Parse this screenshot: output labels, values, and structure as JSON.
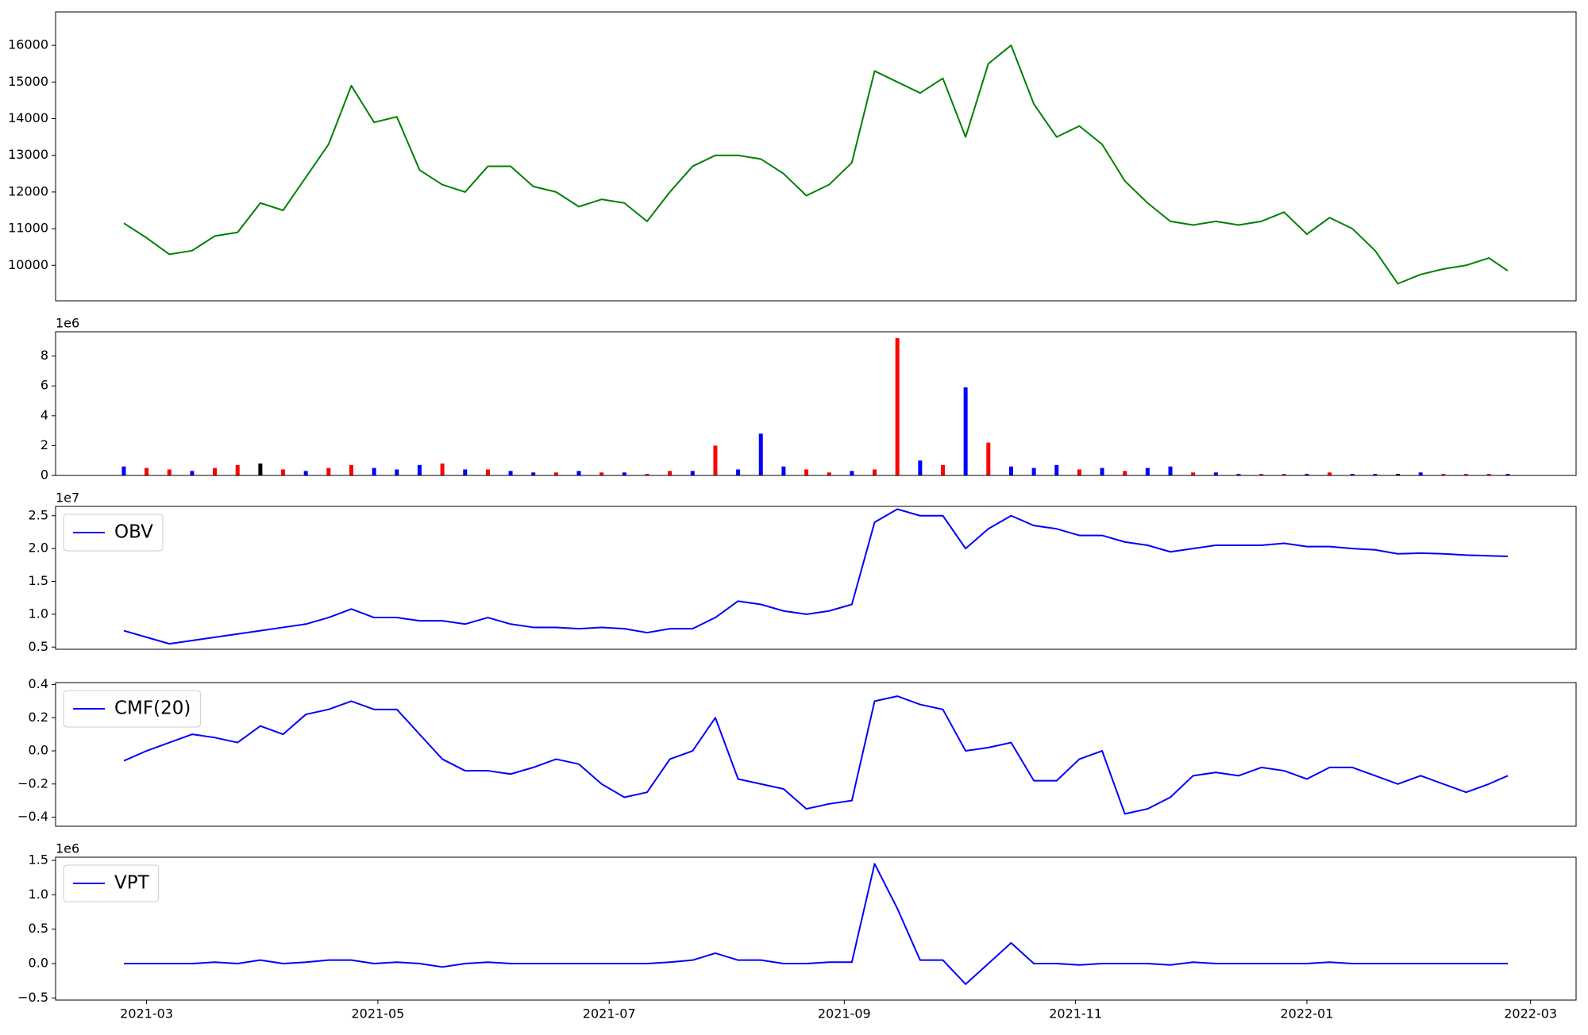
{
  "chart_data": [
    {
      "type": "line",
      "x": [
        18681,
        18687,
        18693,
        18699,
        18705,
        18711,
        18717,
        18723,
        18729,
        18735,
        18741,
        18747,
        18753,
        18759,
        18765,
        18771,
        18777,
        18783,
        18789,
        18795,
        18801,
        18807,
        18813,
        18819,
        18825,
        18831,
        18837,
        18843,
        18849,
        18855,
        18861,
        18867,
        18873,
        18879,
        18885,
        18891,
        18897,
        18903,
        18909,
        18915,
        18921,
        18927,
        18933,
        18939,
        18945,
        18951,
        18957,
        18963,
        18969,
        18975,
        18981,
        18987,
        18993,
        18999,
        19005,
        19011,
        19017,
        19023,
        19029,
        19035,
        19041,
        19046
      ],
      "series": [
        {
          "color": "#008000",
          "values": [
            11150,
            10750,
            10300,
            10400,
            10800,
            10900,
            11700,
            11500,
            12400,
            13300,
            14900,
            13900,
            14050,
            12600,
            12200,
            12000,
            12700,
            12700,
            12150,
            12000,
            11600,
            11800,
            11700,
            11200,
            12000,
            12700,
            13000,
            13000,
            12900,
            12500,
            11900,
            12200,
            12800,
            15300,
            15000,
            14700,
            15100,
            13500,
            15500,
            16000,
            14400,
            13500,
            13800,
            13300,
            12300,
            11700,
            11200,
            11100,
            11200,
            11100,
            11200,
            11450,
            10850,
            11300,
            11000,
            10400,
            9500,
            9750,
            9900,
            10000,
            10200,
            9850
          ]
        }
      ],
      "xlim": [
        18663,
        19064
      ],
      "ylim": [
        9032,
        16912
      ],
      "yticks": [
        10000,
        11000,
        12000,
        13000,
        14000,
        15000,
        16000
      ]
    },
    {
      "type": "bar",
      "x": [
        18681,
        18687,
        18693,
        18699,
        18705,
        18711,
        18717,
        18723,
        18729,
        18735,
        18741,
        18747,
        18753,
        18759,
        18765,
        18771,
        18777,
        18783,
        18789,
        18795,
        18801,
        18807,
        18813,
        18819,
        18825,
        18831,
        18837,
        18843,
        18849,
        18855,
        18861,
        18867,
        18873,
        18879,
        18885,
        18891,
        18897,
        18903,
        18909,
        18915,
        18921,
        18927,
        18933,
        18939,
        18945,
        18951,
        18957,
        18963,
        18969,
        18975,
        18981,
        18987,
        18993,
        18999,
        19005,
        19011,
        19017,
        19023,
        19029,
        19035,
        19041,
        19046
      ],
      "offset_text": "1e6",
      "series": [
        {
          "values": [
            600000,
            500000,
            400000,
            300000,
            500000,
            700000,
            800000,
            400000,
            300000,
            500000,
            700000,
            500000,
            400000,
            700000,
            800000,
            400000,
            400000,
            300000,
            200000,
            200000,
            300000,
            200000,
            200000,
            100000,
            300000,
            300000,
            2000000,
            400000,
            2800000,
            600000,
            400000,
            200000,
            300000,
            400000,
            9200000,
            1000000,
            700000,
            5900000,
            2200000,
            600000,
            500000,
            700000,
            400000,
            500000,
            300000,
            500000,
            600000,
            200000,
            200000,
            100000,
            100000,
            100000,
            100000,
            200000,
            100000,
            100000,
            100000,
            200000,
            100000,
            100000,
            100000,
            100000
          ],
          "colors": [
            "blue",
            "red",
            "red",
            "blue",
            "red",
            "red",
            "black",
            "red",
            "blue",
            "red",
            "red",
            "blue",
            "blue",
            "blue",
            "red",
            "blue",
            "red",
            "blue",
            "blue",
            "red",
            "blue",
            "red",
            "blue",
            "red",
            "red",
            "blue",
            "red",
            "blue",
            "blue",
            "blue",
            "red",
            "red",
            "blue",
            "red",
            "red",
            "blue",
            "red",
            "blue",
            "red",
            "blue",
            "blue",
            "blue",
            "red",
            "blue",
            "red",
            "blue",
            "blue",
            "red",
            "blue",
            "blue",
            "red",
            "red",
            "blue",
            "red",
            "blue",
            "blue",
            "black",
            "blue",
            "red",
            "red",
            "red",
            "blue"
          ]
        }
      ],
      "xlim": [
        18663,
        19064
      ],
      "ylim": [
        0,
        9630000
      ],
      "yticks": [
        {
          "value": 0,
          "label": "0"
        },
        {
          "value": 2000000,
          "label": "2"
        },
        {
          "value": 4000000,
          "label": "4"
        },
        {
          "value": 6000000,
          "label": "6"
        },
        {
          "value": 8000000,
          "label": "8"
        }
      ]
    },
    {
      "type": "line",
      "x": [
        18681,
        18687,
        18693,
        18699,
        18705,
        18711,
        18717,
        18723,
        18729,
        18735,
        18741,
        18747,
        18753,
        18759,
        18765,
        18771,
        18777,
        18783,
        18789,
        18795,
        18801,
        18807,
        18813,
        18819,
        18825,
        18831,
        18837,
        18843,
        18849,
        18855,
        18861,
        18867,
        18873,
        18879,
        18885,
        18891,
        18897,
        18903,
        18909,
        18915,
        18921,
        18927,
        18933,
        18939,
        18945,
        18951,
        18957,
        18963,
        18969,
        18975,
        18981,
        18987,
        18993,
        18999,
        19005,
        19011,
        19017,
        19023,
        19029,
        19035,
        19041,
        19046
      ],
      "offset_text": "1e7",
      "series": [
        {
          "name": "OBV",
          "color": "#0000ff",
          "values": [
            7500000,
            6500000,
            5500000,
            6000000,
            6500000,
            7000000,
            7500000,
            8000000,
            8500000,
            9500000,
            10800000,
            9500000,
            9500000,
            9000000,
            9000000,
            8500000,
            9500000,
            8500000,
            8000000,
            8000000,
            7800000,
            8000000,
            7800000,
            7200000,
            7800000,
            7800000,
            9500000,
            12000000,
            11500000,
            10500000,
            10000000,
            10500000,
            11500000,
            24000000,
            26000000,
            25000000,
            25000000,
            20000000,
            23000000,
            25000000,
            23500000,
            23000000,
            22000000,
            22000000,
            21000000,
            20500000,
            19500000,
            20000000,
            20500000,
            20500000,
            20500000,
            20800000,
            20300000,
            20300000,
            20000000,
            19800000,
            19200000,
            19300000,
            19200000,
            19000000,
            18900000,
            18800000
          ]
        }
      ],
      "xlim": [
        18663,
        19064
      ],
      "ylim": [
        4670000,
        26420000
      ],
      "yticks": [
        {
          "value": 5000000,
          "label": "0.5"
        },
        {
          "value": 10000000,
          "label": "1.0"
        },
        {
          "value": 15000000,
          "label": "1.5"
        },
        {
          "value": 20000000,
          "label": "2.0"
        },
        {
          "value": 25000000,
          "label": "2.5"
        }
      ],
      "legend": "upper left"
    },
    {
      "type": "line",
      "x": [
        18681,
        18687,
        18693,
        18699,
        18705,
        18711,
        18717,
        18723,
        18729,
        18735,
        18741,
        18747,
        18753,
        18759,
        18765,
        18771,
        18777,
        18783,
        18789,
        18795,
        18801,
        18807,
        18813,
        18819,
        18825,
        18831,
        18837,
        18843,
        18849,
        18855,
        18861,
        18867,
        18873,
        18879,
        18885,
        18891,
        18897,
        18903,
        18909,
        18915,
        18921,
        18927,
        18933,
        18939,
        18945,
        18951,
        18957,
        18963,
        18969,
        18975,
        18981,
        18987,
        18993,
        18999,
        19005,
        19011,
        19017,
        19023,
        19029,
        19035,
        19041,
        19046
      ],
      "series": [
        {
          "name": "CMF(20)",
          "color": "#0000ff",
          "values": [
            -0.06,
            0.0,
            0.05,
            0.1,
            0.08,
            0.05,
            0.15,
            0.1,
            0.22,
            0.25,
            0.3,
            0.25,
            0.25,
            0.1,
            -0.05,
            -0.12,
            -0.12,
            -0.14,
            -0.1,
            -0.05,
            -0.08,
            -0.2,
            -0.28,
            -0.25,
            -0.05,
            0.0,
            0.2,
            -0.17,
            -0.2,
            -0.23,
            -0.35,
            -0.32,
            -0.3,
            0.3,
            0.33,
            0.28,
            0.25,
            0.0,
            0.02,
            0.05,
            -0.18,
            -0.18,
            -0.05,
            0.0,
            -0.38,
            -0.35,
            -0.28,
            -0.15,
            -0.13,
            -0.15,
            -0.1,
            -0.12,
            -0.17,
            -0.1,
            -0.1,
            -0.15,
            -0.2,
            -0.15,
            -0.2,
            -0.25,
            -0.2,
            -0.15
          ]
        }
      ],
      "xlim": [
        18663,
        19064
      ],
      "ylim": [
        -0.455,
        0.412
      ],
      "yticks": [
        {
          "value": -0.4,
          "label": "−0.4"
        },
        {
          "value": -0.2,
          "label": "−0.2"
        },
        {
          "value": 0,
          "label": "0.0"
        },
        0.2,
        0.4
      ],
      "legend": "upper left"
    },
    {
      "type": "line",
      "x": [
        18681,
        18687,
        18693,
        18699,
        18705,
        18711,
        18717,
        18723,
        18729,
        18735,
        18741,
        18747,
        18753,
        18759,
        18765,
        18771,
        18777,
        18783,
        18789,
        18795,
        18801,
        18807,
        18813,
        18819,
        18825,
        18831,
        18837,
        18843,
        18849,
        18855,
        18861,
        18867,
        18873,
        18879,
        18885,
        18891,
        18897,
        18903,
        18909,
        18915,
        18921,
        18927,
        18933,
        18939,
        18945,
        18951,
        18957,
        18963,
        18969,
        18975,
        18981,
        18987,
        18993,
        18999,
        19005,
        19011,
        19017,
        19023,
        19029,
        19035,
        19041,
        19046
      ],
      "offset_text": "1e6",
      "series": [
        {
          "name": "VPT",
          "color": "#0000ff",
          "values": [
            0,
            0,
            0,
            0,
            20000,
            0,
            50000,
            0,
            20000,
            50000,
            50000,
            0,
            20000,
            0,
            -50000,
            0,
            20000,
            0,
            0,
            0,
            0,
            0,
            0,
            0,
            20000,
            50000,
            150000,
            50000,
            50000,
            0,
            0,
            20000,
            20000,
            1450000,
            800000,
            50000,
            50000,
            -300000,
            0,
            300000,
            0,
            0,
            -20000,
            0,
            0,
            0,
            -20000,
            20000,
            0,
            0,
            0,
            0,
            0,
            20000,
            0,
            0,
            0,
            0,
            0,
            0,
            0,
            0
          ]
        }
      ],
      "xlim": [
        18663,
        19064
      ],
      "ylim": [
        -531000,
        1546000
      ],
      "yticks": [
        {
          "value": -500000,
          "label": "−0.5"
        },
        {
          "value": 0,
          "label": "0.0"
        },
        {
          "value": 500000,
          "label": "0.5"
        },
        {
          "value": 1000000,
          "label": "1.0"
        },
        {
          "value": 1500000,
          "label": "1.5"
        }
      ],
      "xticks": [
        {
          "value": 18687,
          "label": "2021-03"
        },
        {
          "value": 18748,
          "label": "2021-05"
        },
        {
          "value": 18809,
          "label": "2021-07"
        },
        {
          "value": 18871,
          "label": "2021-09"
        },
        {
          "value": 18932,
          "label": "2021-11"
        },
        {
          "value": 18993,
          "label": "2022-01"
        },
        {
          "value": 19052,
          "label": "2022-03"
        }
      ],
      "legend": "upper left"
    }
  ]
}
